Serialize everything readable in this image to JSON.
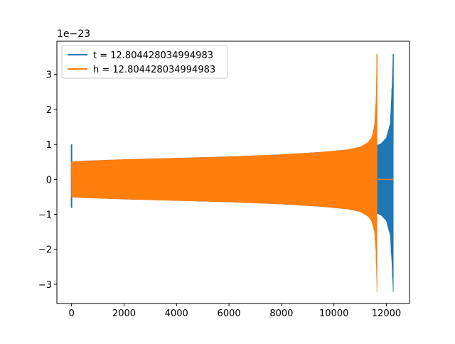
{
  "chart_data": {
    "type": "line",
    "title": "",
    "xlabel": "",
    "ylabel": "",
    "offset_label": "1e−23",
    "xlim": [
      -560,
      12880
    ],
    "ylim": [
      -3.55,
      3.95
    ],
    "x_ticks": [
      0,
      2000,
      4000,
      6000,
      8000,
      10000,
      12000
    ],
    "x_tick_labels": [
      "0",
      "2000",
      "4000",
      "6000",
      "8000",
      "10000",
      "12000"
    ],
    "y_ticks": [
      3,
      2,
      1,
      0,
      -1,
      -2,
      -3
    ],
    "y_tick_labels": [
      "3",
      "2",
      "1",
      "0",
      "−1",
      "−2",
      "−3"
    ],
    "grid": false,
    "legend_position": "top-left",
    "series": [
      {
        "name": "t = 12.804428034994983",
        "color": "#1f77b4",
        "envelope_x": [
          0,
          50,
          500,
          2000,
          4000,
          6000,
          8000,
          9500,
          10500,
          11000,
          11650,
          11800,
          12000,
          12150,
          12220,
          12260
        ],
        "envelope_upper": [
          0.5,
          0.5,
          0.52,
          0.56,
          0.6,
          0.64,
          0.7,
          0.77,
          0.84,
          0.88,
          0.97,
          1.02,
          1.18,
          1.6,
          2.7,
          3.58
        ],
        "envelope_lower": [
          -0.5,
          -0.5,
          -0.52,
          -0.56,
          -0.6,
          -0.64,
          -0.7,
          -0.77,
          -0.84,
          -0.88,
          -0.97,
          -1.02,
          -1.18,
          -1.6,
          -2.5,
          -3.22
        ],
        "initial_spike": {
          "x": 0,
          "max": 1.0,
          "min": -0.82
        },
        "end_x": 12260
      },
      {
        "name": "h = 12.804428034994983",
        "color": "#ff7f0e",
        "envelope_x": [
          0,
          50,
          500,
          2000,
          4000,
          6000,
          8000,
          9500,
          10500,
          11000,
          11300,
          11450,
          11550,
          11610,
          11640
        ],
        "envelope_upper": [
          0.5,
          0.5,
          0.52,
          0.56,
          0.6,
          0.64,
          0.7,
          0.77,
          0.84,
          0.92,
          1.05,
          1.2,
          1.55,
          2.3,
          3.58
        ],
        "envelope_lower": [
          -0.5,
          -0.5,
          -0.52,
          -0.56,
          -0.6,
          -0.64,
          -0.7,
          -0.77,
          -0.84,
          -0.92,
          -1.05,
          -1.2,
          -1.5,
          -2.1,
          -3.22
        ],
        "tail_x": [
          11640,
          12260
        ],
        "tail_y": 0
      }
    ]
  }
}
